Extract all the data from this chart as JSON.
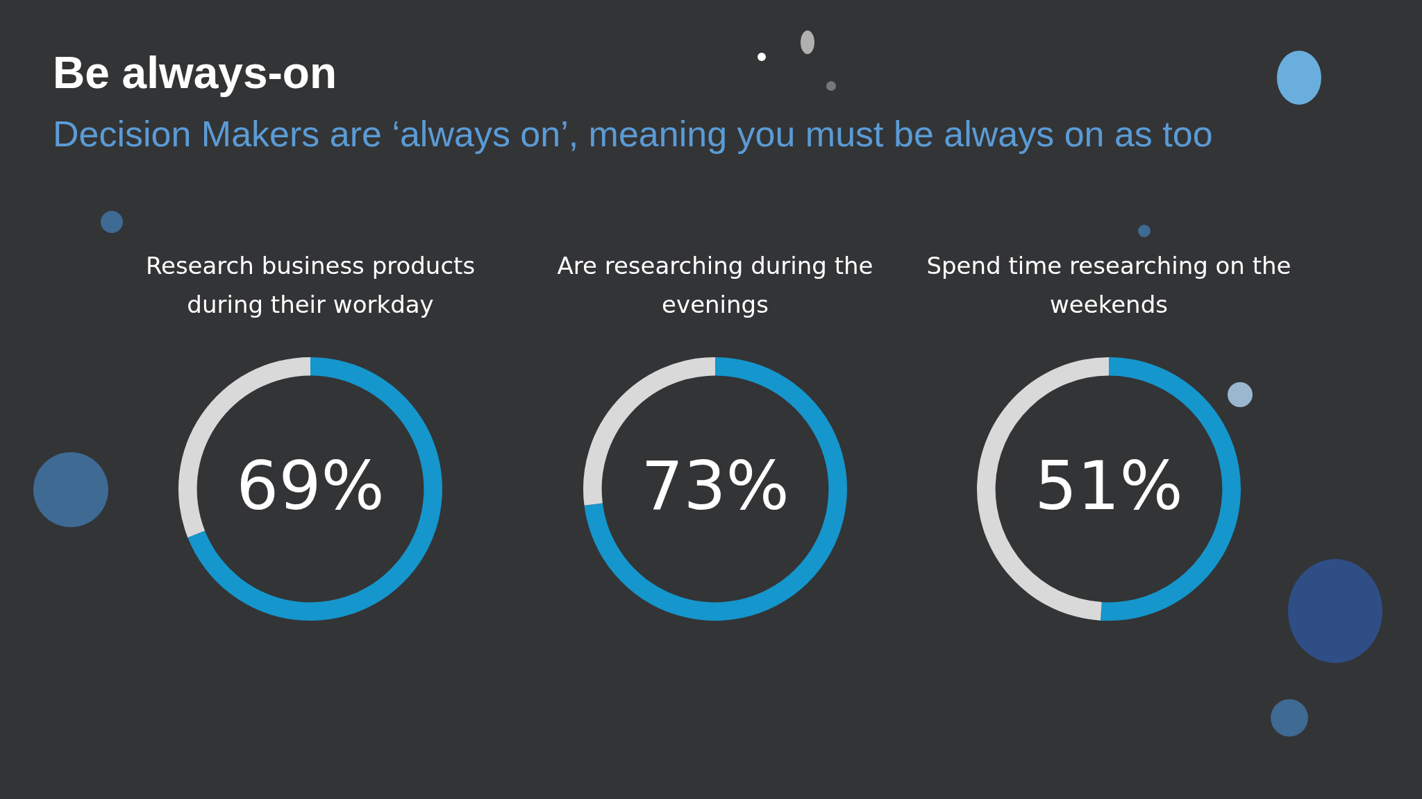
{
  "chart_data": [
    {
      "type": "other",
      "title": "Be always-on",
      "subtitle": "Decision Makers are ‘always on’, meaning you must be always on as too"
    },
    {
      "type": "donut",
      "title": "Research business products during their workday",
      "categories": [
        null,
        null
      ],
      "values": [
        69,
        31
      ],
      "colors": [
        "#1596cc",
        "#d9d9d9"
      ],
      "value_labels": [
        "69%",
        null
      ]
    },
    {
      "type": "donut",
      "title": "Are researching during the evenings",
      "categories": [
        null,
        null
      ],
      "values": [
        73,
        27
      ],
      "colors": [
        "#1596cc",
        "#d9d9d9"
      ],
      "value_labels": [
        "73%",
        null
      ]
    },
    {
      "type": "donut",
      "title": "Spend time researching on the weekends",
      "categories": [
        null,
        null
      ],
      "values": [
        51,
        49
      ],
      "colors": [
        "#1596cc",
        "#d9d9d9"
      ],
      "value_labels": [
        "51%",
        null
      ]
    }
  ]
}
